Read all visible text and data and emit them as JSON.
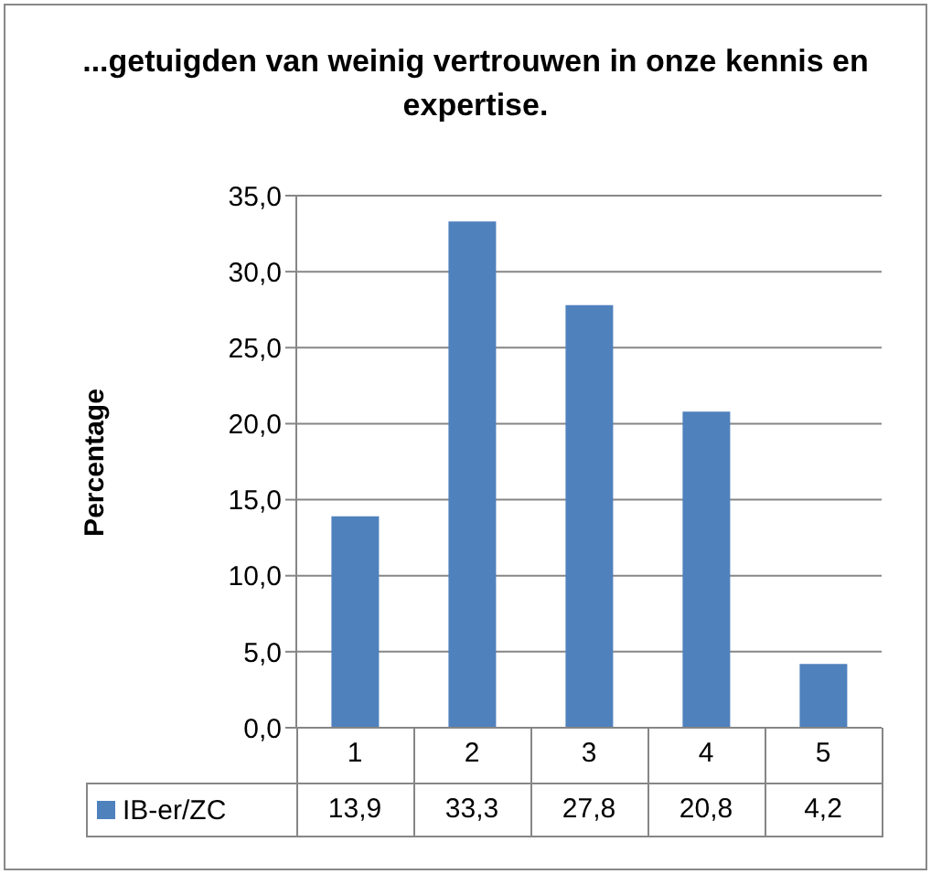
{
  "chart_data": {
    "type": "bar",
    "title": "...getuigden van weinig vertrouwen in onze kennis en expertise.",
    "ylabel": "Percentage",
    "categories": [
      "1",
      "2",
      "3",
      "4",
      "5"
    ],
    "series": [
      {
        "name": "IB-er/ZC",
        "color": "#4f81bd",
        "values": [
          13.9,
          33.3,
          27.8,
          20.8,
          4.2
        ],
        "value_labels": [
          "13,9",
          "33,3",
          "27,8",
          "20,8",
          "4,2"
        ]
      }
    ],
    "ylim": [
      0,
      35
    ],
    "yticks": [
      {
        "value": 0,
        "label": "0,0"
      },
      {
        "value": 5,
        "label": "5,0"
      },
      {
        "value": 10,
        "label": "10,0"
      },
      {
        "value": 15,
        "label": "15,0"
      },
      {
        "value": 20,
        "label": "20,0"
      },
      {
        "value": 25,
        "label": "25,0"
      },
      {
        "value": 30,
        "label": "30,0"
      },
      {
        "value": 35,
        "label": "35,0"
      }
    ],
    "grid": "y",
    "legend": "bottom"
  }
}
